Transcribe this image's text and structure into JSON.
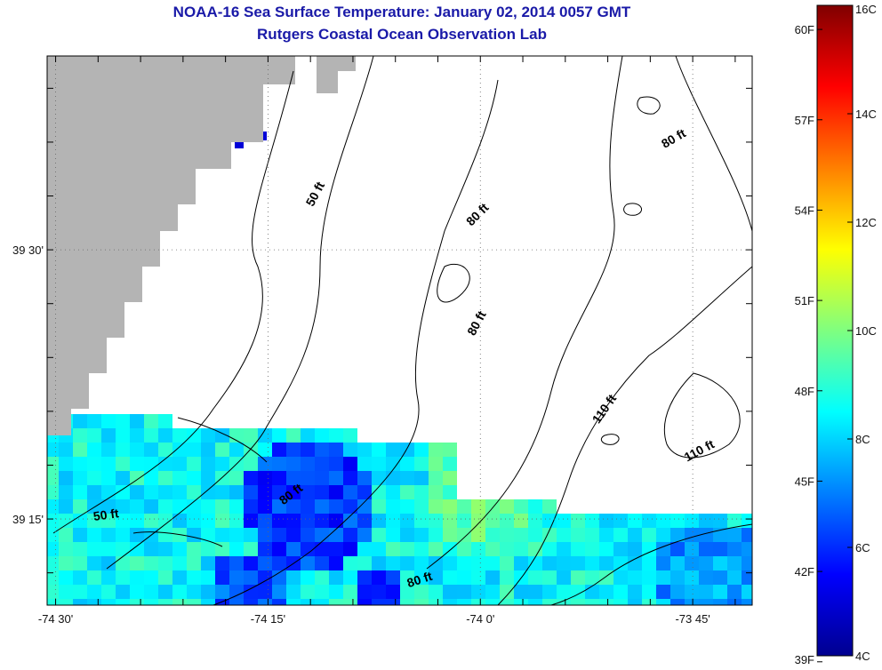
{
  "header": {
    "title": "NOAA-16 Sea Surface Temperature:  January 02, 2014 0057 GMT",
    "subtitle": "Rutgers Coastal Ocean Observation Lab"
  },
  "chart_data": {
    "type": "heatmap",
    "title": "NOAA-16 Sea Surface Temperature:  January 02, 2014 0057 GMT",
    "subtitle": "Rutgers Coastal Ocean Observation Lab",
    "x_axis": {
      "ticks": [
        {
          "value": -74.5,
          "label": "-74 30'"
        },
        {
          "value": -74.25,
          "label": "-74 15'"
        },
        {
          "value": -74.0,
          "label": "-74 0'"
        },
        {
          "value": -73.75,
          "label": "-73 45'"
        }
      ],
      "range": [
        -74.51,
        -73.68
      ]
    },
    "y_axis": {
      "ticks": [
        {
          "value": 39.5,
          "label": "39 30'"
        },
        {
          "value": 39.25,
          "label": "39 15'"
        }
      ],
      "range": [
        39.17,
        39.68
      ]
    },
    "grid": true,
    "depth_contour_labels": [
      {
        "text": "50 ft",
        "lon": -74.19,
        "lat": 39.55,
        "angle": -62
      },
      {
        "text": "80 ft",
        "lon": -74.0,
        "lat": 39.53,
        "angle": -45
      },
      {
        "text": "80 ft",
        "lon": -73.77,
        "lat": 39.6,
        "angle": -30
      },
      {
        "text": "80 ft",
        "lon": -74.0,
        "lat": 39.43,
        "angle": -62
      },
      {
        "text": "110 ft",
        "lon": -73.85,
        "lat": 39.35,
        "angle": -55
      },
      {
        "text": "110 ft",
        "lon": -73.74,
        "lat": 39.31,
        "angle": -28
      },
      {
        "text": "50 ft",
        "lon": -74.44,
        "lat": 39.25,
        "angle": -8
      },
      {
        "text": "80 ft",
        "lon": -74.22,
        "lat": 39.27,
        "angle": -38
      },
      {
        "text": "80 ft",
        "lon": -74.07,
        "lat": 39.19,
        "angle": -18
      }
    ],
    "colorbar": {
      "celsius_range": [
        4,
        16
      ],
      "celsius_ticks": [
        {
          "value": 4,
          "label": "4C"
        },
        {
          "value": 6,
          "label": "6C"
        },
        {
          "value": 8,
          "label": "8C"
        },
        {
          "value": 10,
          "label": "10C"
        },
        {
          "value": 12,
          "label": "12C"
        },
        {
          "value": 14,
          "label": "14C"
        },
        {
          "value": 16,
          "label": "16C"
        }
      ],
      "fahrenheit_ticks": [
        {
          "value": 39,
          "label": "39F"
        },
        {
          "value": 42,
          "label": "42F"
        },
        {
          "value": 45,
          "label": "45F"
        },
        {
          "value": 48,
          "label": "48F"
        },
        {
          "value": 51,
          "label": "51F"
        },
        {
          "value": 54,
          "label": "54F"
        },
        {
          "value": 57,
          "label": "57F"
        },
        {
          "value": 60,
          "label": "60F"
        }
      ]
    },
    "colors": {
      "land": "#b4b4b4",
      "no_data": "#ffffff",
      "contour": "#000000",
      "grid": "#666666",
      "title": "#1a1aa8"
    }
  }
}
